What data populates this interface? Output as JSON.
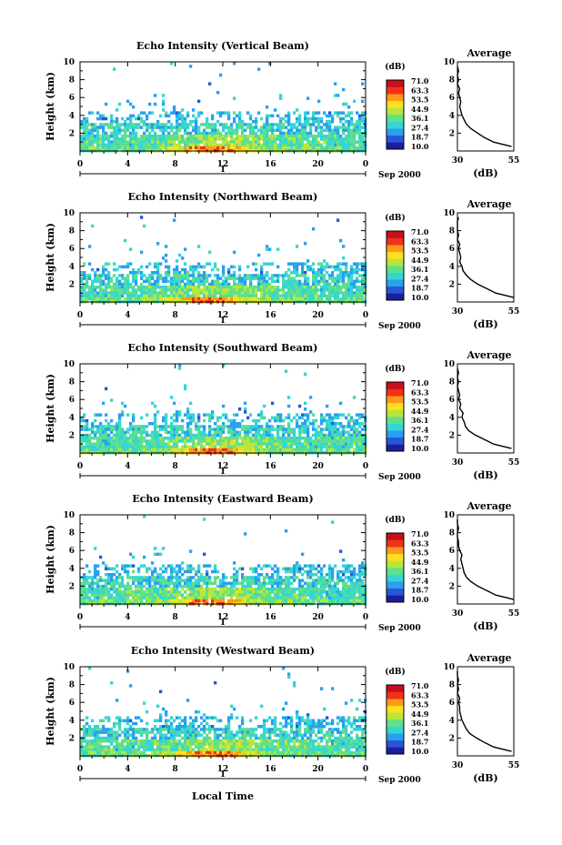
{
  "figure": {
    "bottom_label": "Local Time"
  },
  "colorbar": {
    "unit_label": "(dB)",
    "ticks": [
      "71.0",
      "63.3",
      "53.5",
      "44.9",
      "36.1",
      "27.4",
      "18.7",
      "10.0"
    ],
    "colors": [
      "#1a1f9c",
      "#2a55d8",
      "#2aa0ee",
      "#35d6d2",
      "#5fe08a",
      "#b9e63a",
      "#ffe020",
      "#ff9a18",
      "#f0321a",
      "#c8101a"
    ]
  },
  "chart_data": [
    {
      "type": "heatmap",
      "title": "Echo Intensity (Vertical Beam)",
      "ylabel": "Height (km)",
      "xlim": [
        0,
        24
      ],
      "ylim": [
        0,
        10
      ],
      "xticks": [
        "0",
        "4",
        "8",
        "12",
        "16",
        "20",
        "0"
      ],
      "yticks": [
        "2",
        "4",
        "6",
        "8",
        "10"
      ],
      "date_label": "Sep 2000",
      "day_label": "1",
      "average_profile": {
        "title": "Average",
        "xlabel": "(dB)",
        "xlim": [
          30,
          55
        ],
        "xticks": [
          "30",
          "55"
        ],
        "yticks": [
          "2",
          "4",
          "6",
          "8",
          "10"
        ],
        "values": [
          [
            0.5,
            54
          ],
          [
            1.0,
            46
          ],
          [
            1.5,
            42
          ],
          [
            2.0,
            39
          ],
          [
            2.5,
            36
          ],
          [
            3.0,
            34
          ],
          [
            3.5,
            33
          ],
          [
            4.0,
            32
          ],
          [
            4.5,
            31.5
          ],
          [
            5.0,
            31
          ],
          [
            5.5,
            31.5
          ],
          [
            6.0,
            31
          ],
          [
            6.5,
            30.5
          ],
          [
            7.0,
            31
          ],
          [
            7.5,
            30
          ],
          [
            8.0,
            30.5
          ],
          [
            8.5,
            30
          ],
          [
            9.0,
            30.5
          ],
          [
            9.5,
            30
          ]
        ]
      }
    },
    {
      "type": "heatmap",
      "title": "Echo Intensity (Northward Beam)",
      "ylabel": "Height (km)",
      "xlim": [
        0,
        24
      ],
      "ylim": [
        0,
        10
      ],
      "xticks": [
        "0",
        "4",
        "8",
        "12",
        "16",
        "20",
        "0"
      ],
      "yticks": [
        "2",
        "4",
        "6",
        "8",
        "10"
      ],
      "date_label": "Sep 2000",
      "day_label": "1",
      "average_profile": {
        "title": "Average",
        "xlabel": "(dB)",
        "xlim": [
          30,
          55
        ],
        "xticks": [
          "30",
          "55"
        ],
        "yticks": [
          "2",
          "4",
          "6",
          "8",
          "10"
        ],
        "values": [
          [
            0.5,
            55
          ],
          [
            1.0,
            47
          ],
          [
            1.5,
            43
          ],
          [
            2.0,
            39
          ],
          [
            2.5,
            36
          ],
          [
            3.0,
            34
          ],
          [
            3.5,
            32.5
          ],
          [
            4.0,
            32
          ],
          [
            4.5,
            31
          ],
          [
            5.0,
            31.5
          ],
          [
            5.5,
            31
          ],
          [
            6.0,
            30.5
          ],
          [
            6.5,
            31
          ],
          [
            7.0,
            30
          ],
          [
            7.5,
            30.5
          ],
          [
            8.0,
            30
          ],
          [
            8.5,
            30
          ],
          [
            9.0,
            30
          ],
          [
            9.5,
            30.5
          ]
        ]
      }
    },
    {
      "type": "heatmap",
      "title": "Echo Intensity (Southward Beam)",
      "ylabel": "Height (km)",
      "xlim": [
        0,
        24
      ],
      "ylim": [
        0,
        10
      ],
      "xticks": [
        "0",
        "4",
        "8",
        "12",
        "16",
        "20",
        "0"
      ],
      "yticks": [
        "2",
        "4",
        "6",
        "8",
        "10"
      ],
      "date_label": "Sep 2000",
      "day_label": "1",
      "average_profile": {
        "title": "Average",
        "xlabel": "(dB)",
        "xlim": [
          30,
          55
        ],
        "xticks": [
          "30",
          "55"
        ],
        "yticks": [
          "2",
          "4",
          "6",
          "8",
          "10"
        ],
        "values": [
          [
            0.5,
            54
          ],
          [
            1.0,
            46
          ],
          [
            1.5,
            42
          ],
          [
            2.0,
            38
          ],
          [
            2.5,
            35
          ],
          [
            3.0,
            33.5
          ],
          [
            3.5,
            33
          ],
          [
            4.0,
            32
          ],
          [
            4.5,
            32.5
          ],
          [
            5.0,
            31
          ],
          [
            5.5,
            31.5
          ],
          [
            6.0,
            30.5
          ],
          [
            6.5,
            31
          ],
          [
            7.0,
            30.5
          ],
          [
            7.5,
            30
          ],
          [
            8.0,
            30.5
          ],
          [
            8.5,
            30
          ],
          [
            9.0,
            30.5
          ],
          [
            9.5,
            30
          ]
        ]
      }
    },
    {
      "type": "heatmap",
      "title": "Echo Intensity (Eastward Beam)",
      "ylabel": "Height (km)",
      "xlim": [
        0,
        24
      ],
      "ylim": [
        0,
        10
      ],
      "xticks": [
        "0",
        "4",
        "8",
        "12",
        "16",
        "20",
        "0"
      ],
      "yticks": [
        "2",
        "4",
        "6",
        "8",
        "10"
      ],
      "date_label": "Sep 2000",
      "day_label": "1",
      "average_profile": {
        "title": "Average",
        "xlabel": "(dB)",
        "xlim": [
          30,
          55
        ],
        "xticks": [
          "30",
          "55"
        ],
        "yticks": [
          "2",
          "4",
          "6",
          "8",
          "10"
        ],
        "values": [
          [
            0.5,
            55
          ],
          [
            1.0,
            47
          ],
          [
            1.5,
            43
          ],
          [
            2.0,
            39
          ],
          [
            2.5,
            36
          ],
          [
            3.0,
            34
          ],
          [
            3.5,
            33
          ],
          [
            4.0,
            32.5
          ],
          [
            4.5,
            32
          ],
          [
            5.0,
            31.5
          ],
          [
            5.5,
            32
          ],
          [
            6.0,
            31
          ],
          [
            6.5,
            30.5
          ],
          [
            7.0,
            30.5
          ],
          [
            7.5,
            30
          ],
          [
            8.0,
            30
          ],
          [
            8.5,
            30.5
          ],
          [
            9.0,
            30
          ],
          [
            9.5,
            30
          ]
        ]
      }
    },
    {
      "type": "heatmap",
      "title": "Echo Intensity (Westward Beam)",
      "ylabel": "Height (km)",
      "xlim": [
        0,
        24
      ],
      "ylim": [
        0,
        10
      ],
      "xticks": [
        "0",
        "4",
        "8",
        "12",
        "16",
        "20",
        "0"
      ],
      "yticks": [
        "2",
        "4",
        "6",
        "8",
        "10"
      ],
      "date_label": "Sep 2000",
      "day_label": "1",
      "average_profile": {
        "title": "Average",
        "xlabel": "(dB)",
        "xlim": [
          30,
          55
        ],
        "xticks": [
          "30",
          "55"
        ],
        "yticks": [
          "2",
          "4",
          "6",
          "8",
          "10"
        ],
        "values": [
          [
            0.5,
            54
          ],
          [
            1.0,
            46
          ],
          [
            1.5,
            42
          ],
          [
            2.0,
            38.5
          ],
          [
            2.5,
            35.5
          ],
          [
            3.0,
            34
          ],
          [
            3.5,
            33
          ],
          [
            4.0,
            32
          ],
          [
            4.5,
            31.5
          ],
          [
            5.0,
            31
          ],
          [
            5.5,
            31
          ],
          [
            6.0,
            30.5
          ],
          [
            6.5,
            31
          ],
          [
            7.0,
            30
          ],
          [
            7.5,
            30.5
          ],
          [
            8.0,
            30
          ],
          [
            8.5,
            30.5
          ],
          [
            9.0,
            30
          ],
          [
            9.5,
            30
          ]
        ]
      }
    }
  ]
}
